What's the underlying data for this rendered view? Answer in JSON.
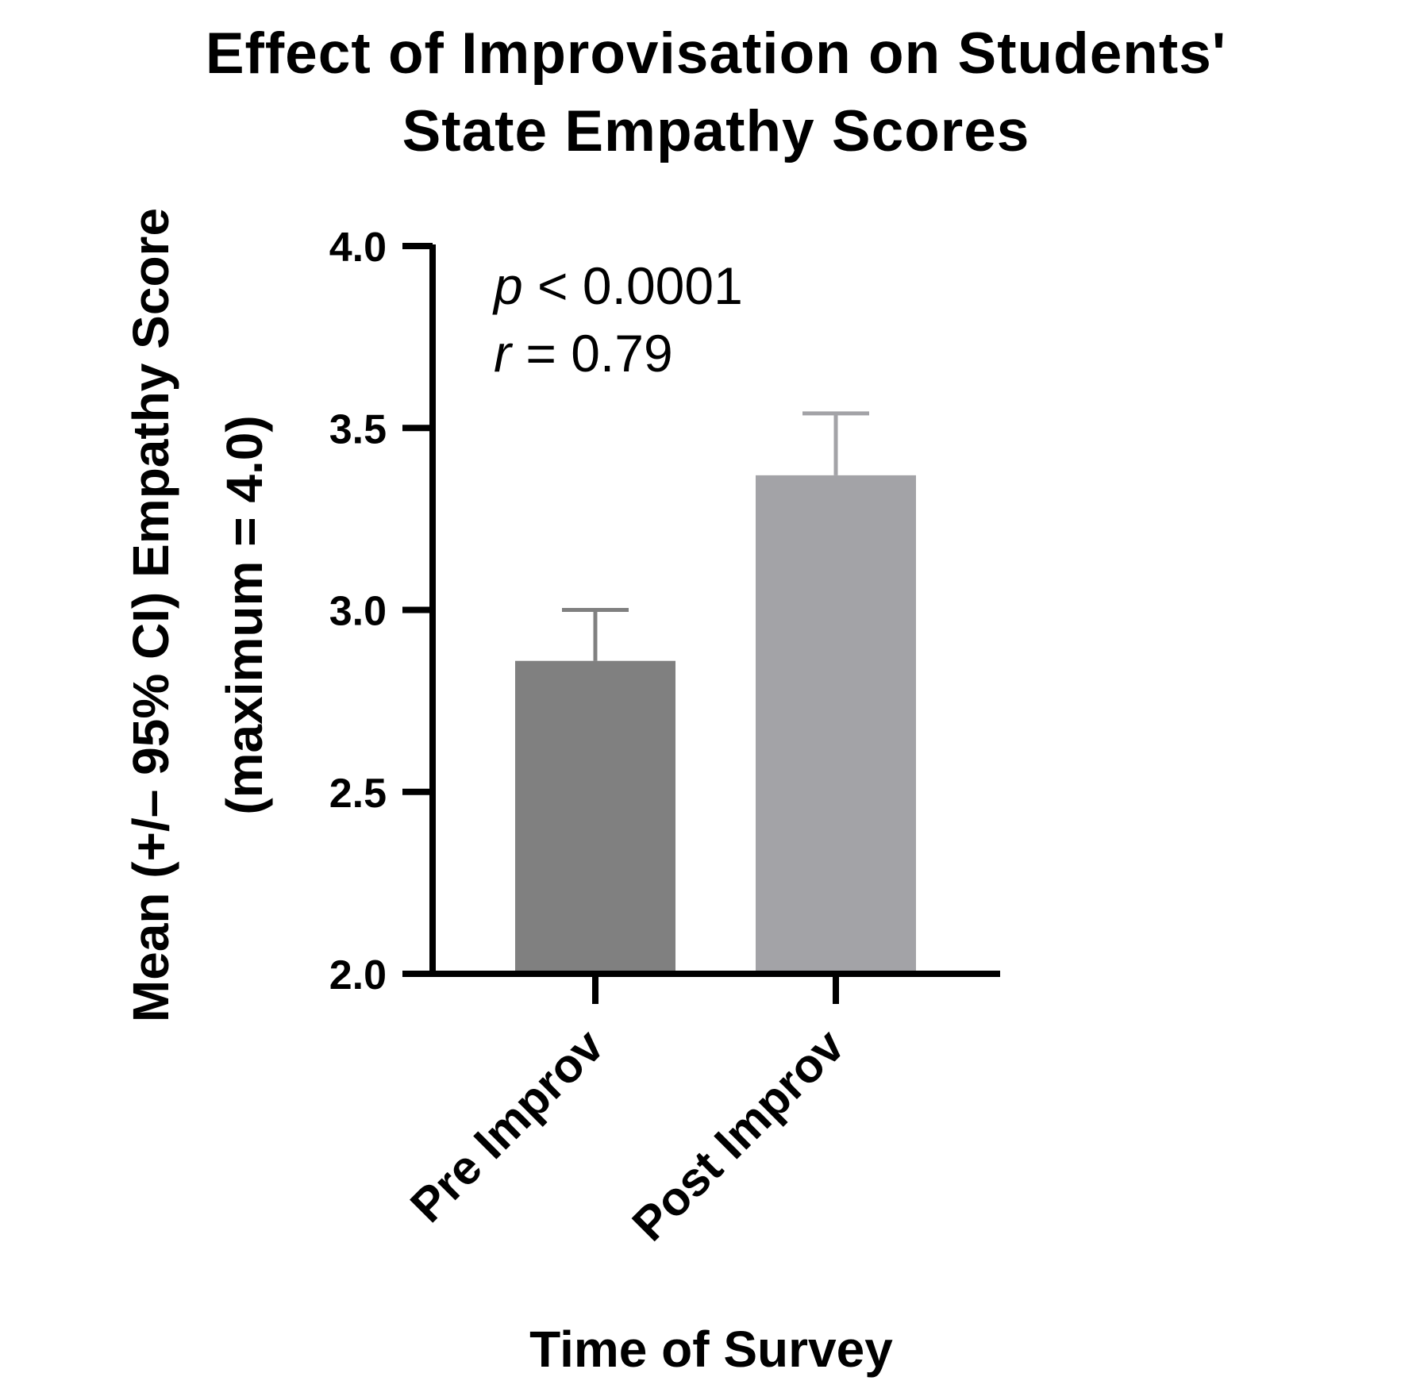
{
  "chart_data": {
    "type": "bar",
    "title": "Effect of Improvisation on Students' State Empathy Scores",
    "title_lines": [
      "Effect of Improvisation on Students'",
      "State Empathy Scores"
    ],
    "xlabel": "Time of Survey",
    "ylabel": "Mean (+/– 95% CI) Empathy Score (maximum = 4.0)",
    "ylabel_lines": [
      "Mean (+/– 95% CI) Empathy Score",
      "(maximum = 4.0)"
    ],
    "categories": [
      "Pre Improv",
      "Post Improv"
    ],
    "values": [
      2.86,
      3.37
    ],
    "error_upper": [
      3.0,
      3.54
    ],
    "colors": [
      "#808080",
      "#a3a3a7"
    ],
    "ylim": [
      2.0,
      4.0
    ],
    "yticks": [
      2.0,
      2.5,
      3.0,
      3.5,
      4.0
    ],
    "ytick_labels": [
      "2.0",
      "2.5",
      "3.0",
      "3.5",
      "4.0"
    ],
    "annotations": [
      {
        "symbol": "p",
        "text": " < 0.0001"
      },
      {
        "symbol": "r",
        "text": " = 0.79"
      }
    ]
  }
}
